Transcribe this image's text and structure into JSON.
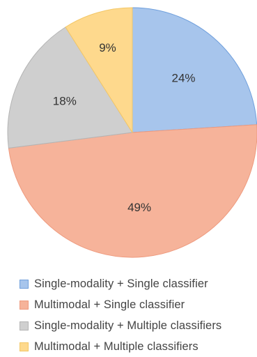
{
  "chart_data": {
    "type": "pie",
    "title": "",
    "legend_position": "bottom",
    "slices": [
      {
        "name": "Single-modality + Single classifier",
        "value": 24,
        "label": "24%",
        "color": "#a7c5ec",
        "stroke": "#6f9fdc"
      },
      {
        "name": "Multimodal + Single classifier",
        "value": 49,
        "label": "49%",
        "color": "#f6b39a",
        "stroke": "#ee9a7e"
      },
      {
        "name": "Single-modality + Multiple classifiers",
        "value": 18,
        "label": "18%",
        "color": "#cfcfcf",
        "stroke": "#b4b4b4"
      },
      {
        "name": "Multimodal + Multiple classifiers",
        "value": 9,
        "label": "9%",
        "color": "#fed98d",
        "stroke": "#f3c766"
      }
    ]
  }
}
